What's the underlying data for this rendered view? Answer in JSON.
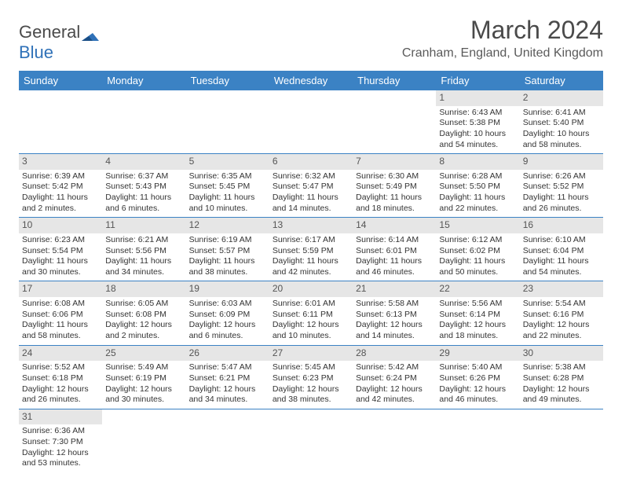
{
  "logo": {
    "text1": "General",
    "text2": "Blue"
  },
  "title": "March 2024",
  "location": "Cranham, England, United Kingdom",
  "day_names": [
    "Sunday",
    "Monday",
    "Tuesday",
    "Wednesday",
    "Thursday",
    "Friday",
    "Saturday"
  ],
  "colors": {
    "header_bg": "#3b82c4",
    "header_text": "#ffffff",
    "daynum_bg": "#e6e6e6",
    "border": "#3b82c4"
  },
  "weeks": [
    [
      null,
      null,
      null,
      null,
      null,
      {
        "n": "1",
        "sr": "6:43 AM",
        "ss": "5:38 PM",
        "dl": "10 hours and 54 minutes."
      },
      {
        "n": "2",
        "sr": "6:41 AM",
        "ss": "5:40 PM",
        "dl": "10 hours and 58 minutes."
      }
    ],
    [
      {
        "n": "3",
        "sr": "6:39 AM",
        "ss": "5:42 PM",
        "dl": "11 hours and 2 minutes."
      },
      {
        "n": "4",
        "sr": "6:37 AM",
        "ss": "5:43 PM",
        "dl": "11 hours and 6 minutes."
      },
      {
        "n": "5",
        "sr": "6:35 AM",
        "ss": "5:45 PM",
        "dl": "11 hours and 10 minutes."
      },
      {
        "n": "6",
        "sr": "6:32 AM",
        "ss": "5:47 PM",
        "dl": "11 hours and 14 minutes."
      },
      {
        "n": "7",
        "sr": "6:30 AM",
        "ss": "5:49 PM",
        "dl": "11 hours and 18 minutes."
      },
      {
        "n": "8",
        "sr": "6:28 AM",
        "ss": "5:50 PM",
        "dl": "11 hours and 22 minutes."
      },
      {
        "n": "9",
        "sr": "6:26 AM",
        "ss": "5:52 PM",
        "dl": "11 hours and 26 minutes."
      }
    ],
    [
      {
        "n": "10",
        "sr": "6:23 AM",
        "ss": "5:54 PM",
        "dl": "11 hours and 30 minutes."
      },
      {
        "n": "11",
        "sr": "6:21 AM",
        "ss": "5:56 PM",
        "dl": "11 hours and 34 minutes."
      },
      {
        "n": "12",
        "sr": "6:19 AM",
        "ss": "5:57 PM",
        "dl": "11 hours and 38 minutes."
      },
      {
        "n": "13",
        "sr": "6:17 AM",
        "ss": "5:59 PM",
        "dl": "11 hours and 42 minutes."
      },
      {
        "n": "14",
        "sr": "6:14 AM",
        "ss": "6:01 PM",
        "dl": "11 hours and 46 minutes."
      },
      {
        "n": "15",
        "sr": "6:12 AM",
        "ss": "6:02 PM",
        "dl": "11 hours and 50 minutes."
      },
      {
        "n": "16",
        "sr": "6:10 AM",
        "ss": "6:04 PM",
        "dl": "11 hours and 54 minutes."
      }
    ],
    [
      {
        "n": "17",
        "sr": "6:08 AM",
        "ss": "6:06 PM",
        "dl": "11 hours and 58 minutes."
      },
      {
        "n": "18",
        "sr": "6:05 AM",
        "ss": "6:08 PM",
        "dl": "12 hours and 2 minutes."
      },
      {
        "n": "19",
        "sr": "6:03 AM",
        "ss": "6:09 PM",
        "dl": "12 hours and 6 minutes."
      },
      {
        "n": "20",
        "sr": "6:01 AM",
        "ss": "6:11 PM",
        "dl": "12 hours and 10 minutes."
      },
      {
        "n": "21",
        "sr": "5:58 AM",
        "ss": "6:13 PM",
        "dl": "12 hours and 14 minutes."
      },
      {
        "n": "22",
        "sr": "5:56 AM",
        "ss": "6:14 PM",
        "dl": "12 hours and 18 minutes."
      },
      {
        "n": "23",
        "sr": "5:54 AM",
        "ss": "6:16 PM",
        "dl": "12 hours and 22 minutes."
      }
    ],
    [
      {
        "n": "24",
        "sr": "5:52 AM",
        "ss": "6:18 PM",
        "dl": "12 hours and 26 minutes."
      },
      {
        "n": "25",
        "sr": "5:49 AM",
        "ss": "6:19 PM",
        "dl": "12 hours and 30 minutes."
      },
      {
        "n": "26",
        "sr": "5:47 AM",
        "ss": "6:21 PM",
        "dl": "12 hours and 34 minutes."
      },
      {
        "n": "27",
        "sr": "5:45 AM",
        "ss": "6:23 PM",
        "dl": "12 hours and 38 minutes."
      },
      {
        "n": "28",
        "sr": "5:42 AM",
        "ss": "6:24 PM",
        "dl": "12 hours and 42 minutes."
      },
      {
        "n": "29",
        "sr": "5:40 AM",
        "ss": "6:26 PM",
        "dl": "12 hours and 46 minutes."
      },
      {
        "n": "30",
        "sr": "5:38 AM",
        "ss": "6:28 PM",
        "dl": "12 hours and 49 minutes."
      }
    ],
    [
      {
        "n": "31",
        "sr": "6:36 AM",
        "ss": "7:30 PM",
        "dl": "12 hours and 53 minutes."
      },
      null,
      null,
      null,
      null,
      null,
      null
    ]
  ],
  "labels": {
    "sunrise": "Sunrise:",
    "sunset": "Sunset:",
    "daylight": "Daylight:"
  }
}
